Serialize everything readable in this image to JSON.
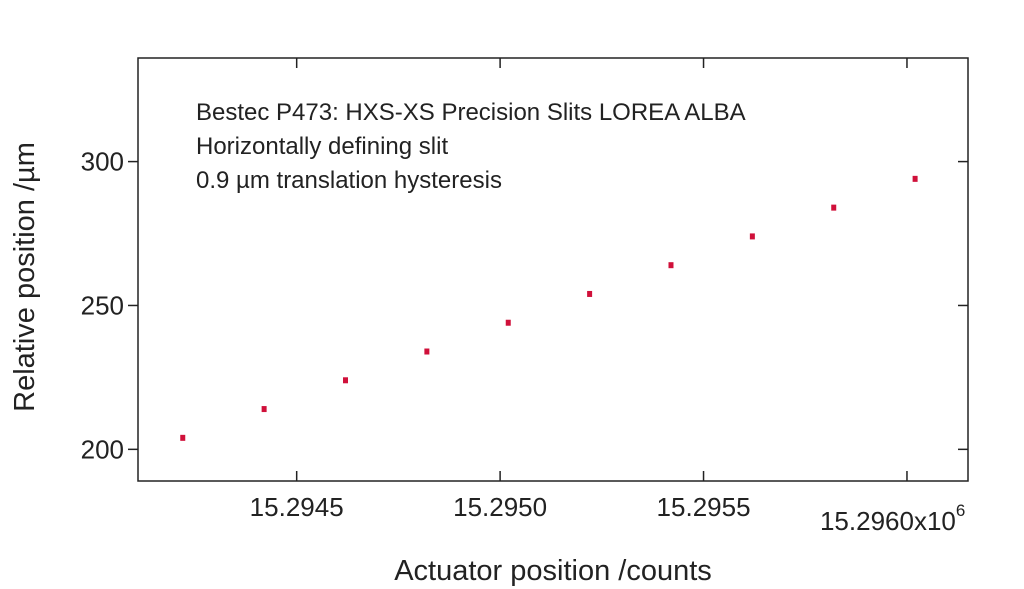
{
  "chart_data": {
    "type": "scatter",
    "xlabel": "Actuator position /counts",
    "ylabel": "Relative position /µm",
    "xlim": [
      15.29411,
      15.29615
    ],
    "ylim": [
      189,
      336
    ],
    "x_scale_label": "x10",
    "x_scale_exponent": "6",
    "x_ticks": [
      {
        "value": 15.2945,
        "label": "15.2945"
      },
      {
        "value": 15.295,
        "label": "15.2950"
      },
      {
        "value": 15.2955,
        "label": "15.2955"
      },
      {
        "value": 15.296,
        "label": "15.2960"
      }
    ],
    "y_ticks": [
      {
        "value": 200,
        "label": "200"
      },
      {
        "value": 250,
        "label": "250"
      },
      {
        "value": 300,
        "label": "300"
      }
    ],
    "annotations": [
      "Bestec P473: HXS-XS Precision Slits LOREA ALBA",
      "Horizontally defining slit",
      "0.9 µm translation hysteresis"
    ],
    "grid": false,
    "series": [
      {
        "color": "#d0103a",
        "x": [
          15.29422,
          15.29442,
          15.29462,
          15.29482,
          15.29502,
          15.29522,
          15.29542,
          15.29562,
          15.29582,
          15.29602
        ],
        "y": [
          204,
          214,
          224,
          234,
          244,
          254,
          264,
          274,
          284,
          294
        ]
      }
    ]
  }
}
